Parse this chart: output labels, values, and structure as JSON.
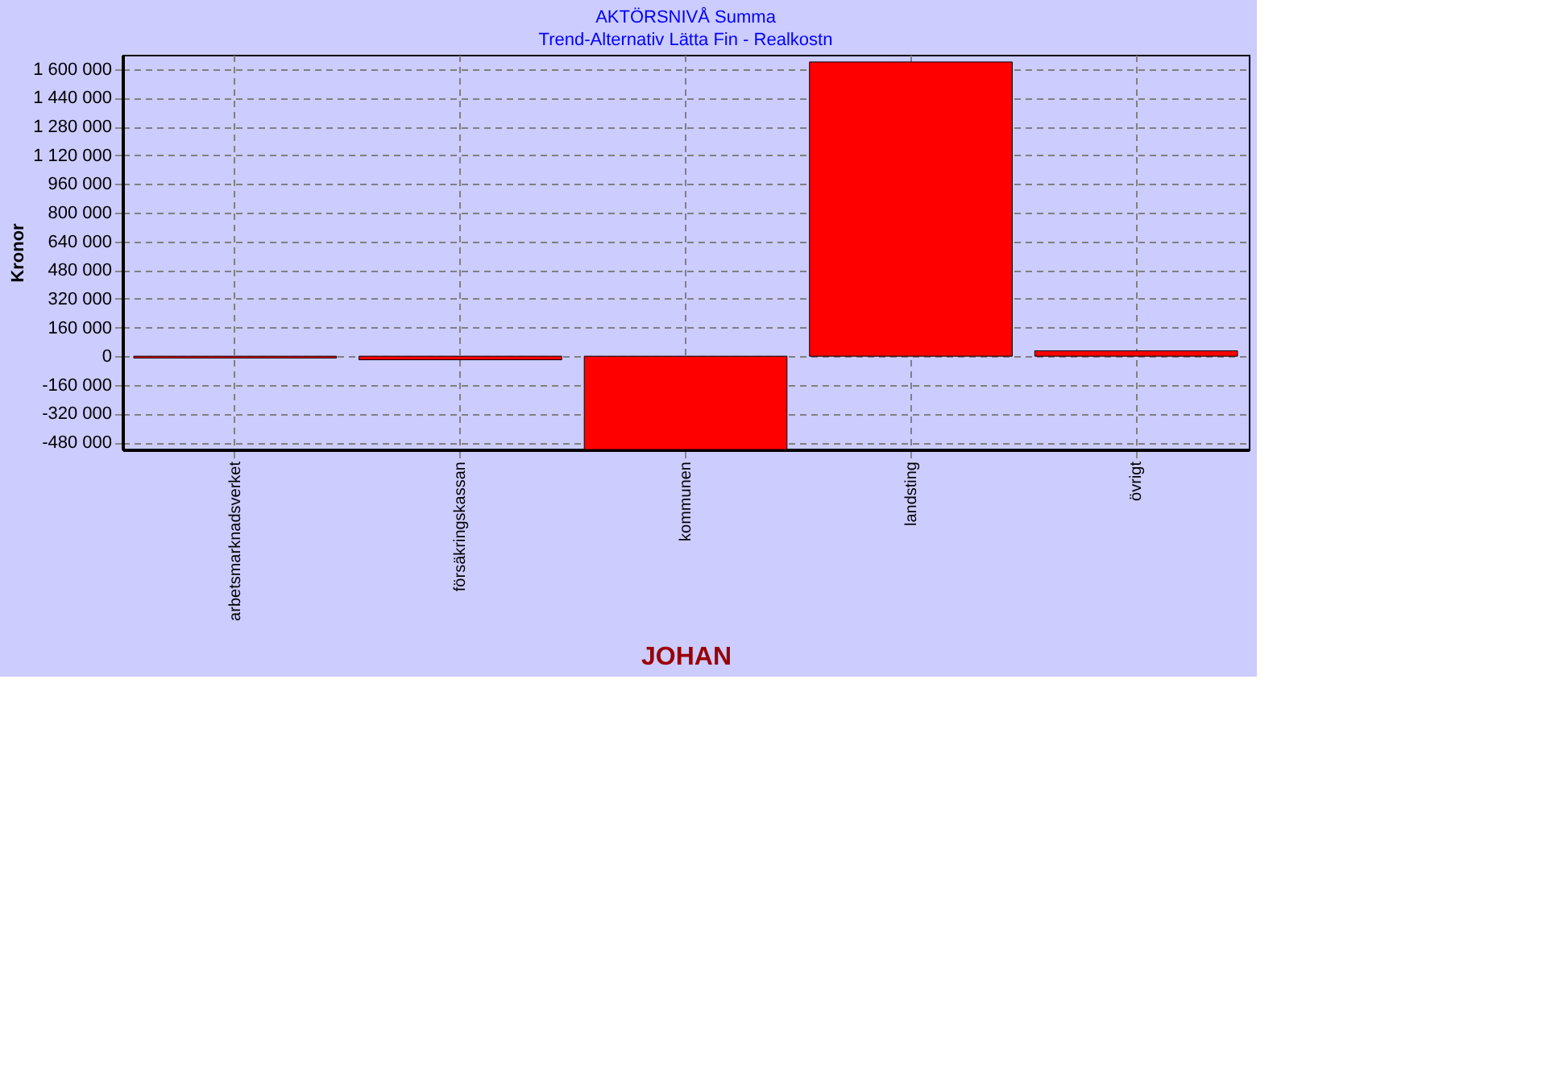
{
  "chart_data": {
    "type": "bar",
    "title": "AKTÖRSNIVÅ Summa",
    "subtitle": "Trend-Alternativ Lätta Fin - Realkostn",
    "xlabel": "JOHAN",
    "ylabel": "Kronor",
    "categories": [
      "arbetsmarknadsverket",
      "försäkringskassan",
      "kommunen",
      "landsting",
      "övrigt"
    ],
    "values": [
      -10000,
      -20000,
      -520000,
      1640000,
      30000
    ],
    "color": "#ff0000",
    "ylim": [
      -520000,
      1680000
    ],
    "yticks": [
      {
        "value": -480000,
        "label": "-480 000"
      },
      {
        "value": -320000,
        "label": "-320 000"
      },
      {
        "value": -160000,
        "label": "-160 000"
      },
      0,
      {
        "value": 160000,
        "label": "160 000"
      },
      {
        "value": 320000,
        "label": "320 000"
      },
      {
        "value": 480000,
        "label": "480 000"
      },
      {
        "value": 640000,
        "label": "640 000"
      },
      {
        "value": 800000,
        "label": "800 000"
      },
      {
        "value": 960000,
        "label": "960 000"
      },
      {
        "value": 1120000,
        "label": "1 120 000"
      },
      {
        "value": 1280000,
        "label": "1 280 000"
      },
      {
        "value": 1440000,
        "label": "1 440 000"
      },
      {
        "value": 1600000,
        "label": "1 600 000"
      }
    ],
    "grid": true
  }
}
